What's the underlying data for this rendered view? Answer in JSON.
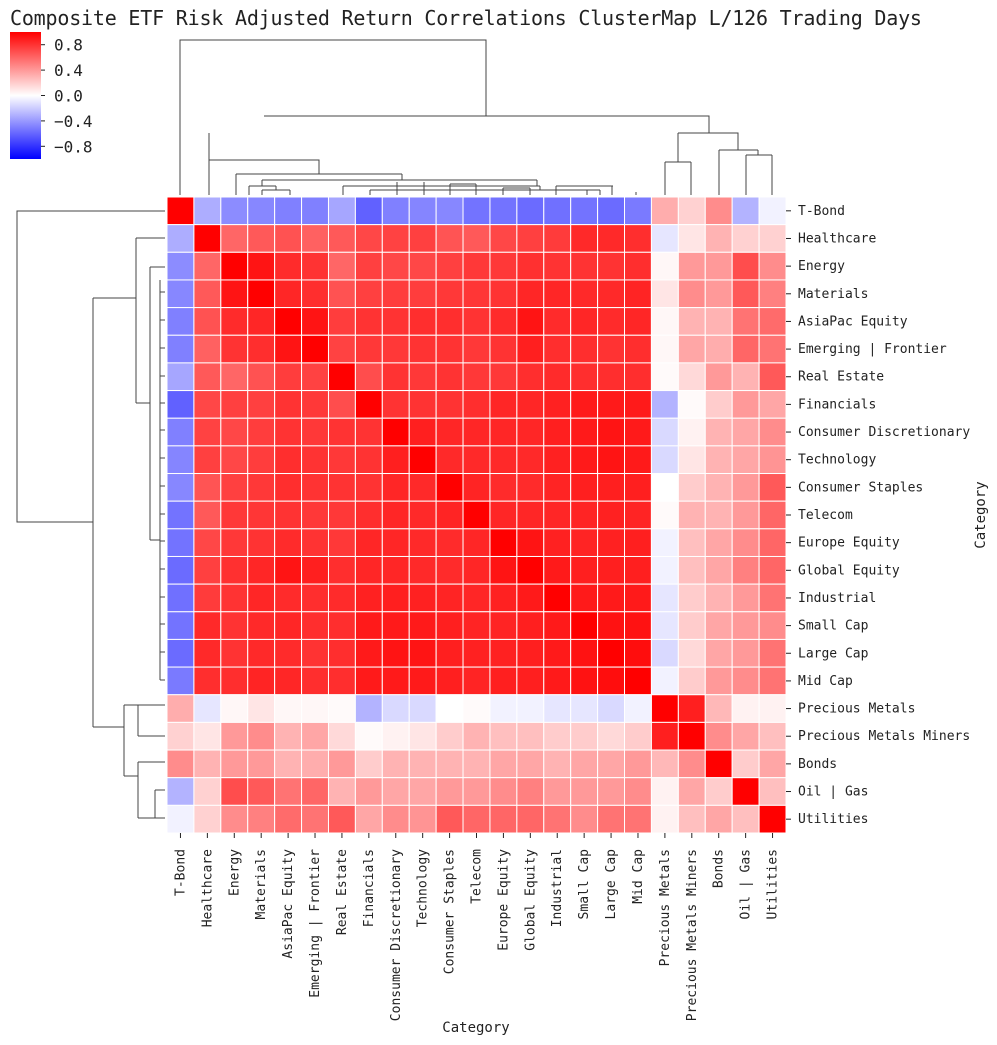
{
  "chart_data": {
    "type": "heatmap",
    "title": "Composite ETF Risk Adjusted Return Correlations ClusterMap L/126 Trading Days",
    "xlabel": "Category",
    "ylabel": "Category",
    "colorbar": {
      "cmap": "bwr",
      "vmin": -1.0,
      "vmax": 1.0,
      "ticks": [
        0.8,
        0.4,
        0.0,
        -0.4,
        -0.8
      ],
      "tick_labels": [
        "0.8",
        "0.4",
        "0.0",
        "−0.4",
        "−0.8"
      ]
    },
    "categories": [
      "T-Bond",
      "Healthcare",
      "Energy",
      "Materials",
      "AsiaPac Equity",
      "Emerging | Frontier",
      "Real Estate",
      "Financials",
      "Consumer Discretionary",
      "Technology",
      "Consumer Staples",
      "Telecom",
      "Europe Equity",
      "Global Equity",
      "Industrial",
      "Small Cap",
      "Large Cap",
      "Mid Cap",
      "Precious Metals",
      "Precious Metals Miners",
      "Bonds",
      "Oil | Gas",
      "Utilities"
    ],
    "matrix": [
      [
        1.0,
        -0.32,
        -0.45,
        -0.47,
        -0.5,
        -0.5,
        -0.35,
        -0.62,
        -0.5,
        -0.48,
        -0.47,
        -0.55,
        -0.55,
        -0.58,
        -0.56,
        -0.55,
        -0.58,
        -0.52,
        0.32,
        0.18,
        0.45,
        -0.3,
        -0.05
      ],
      [
        -0.32,
        1.0,
        0.6,
        0.65,
        0.68,
        0.62,
        0.65,
        0.72,
        0.74,
        0.75,
        0.67,
        0.65,
        0.72,
        0.75,
        0.77,
        0.84,
        0.84,
        0.82,
        -0.1,
        0.1,
        0.3,
        0.18,
        0.18
      ],
      [
        -0.45,
        0.6,
        1.0,
        0.92,
        0.83,
        0.8,
        0.6,
        0.75,
        0.72,
        0.72,
        0.75,
        0.78,
        0.78,
        0.81,
        0.8,
        0.8,
        0.8,
        0.82,
        0.03,
        0.4,
        0.4,
        0.7,
        0.45
      ],
      [
        -0.47,
        0.65,
        0.92,
        1.0,
        0.85,
        0.82,
        0.68,
        0.75,
        0.76,
        0.76,
        0.78,
        0.79,
        0.8,
        0.85,
        0.85,
        0.84,
        0.84,
        0.86,
        0.1,
        0.45,
        0.4,
        0.65,
        0.5
      ],
      [
        -0.5,
        0.68,
        0.83,
        0.85,
        1.0,
        0.92,
        0.76,
        0.8,
        0.8,
        0.82,
        0.82,
        0.8,
        0.83,
        0.92,
        0.83,
        0.85,
        0.83,
        0.85,
        0.03,
        0.3,
        0.3,
        0.55,
        0.58
      ],
      [
        -0.5,
        0.62,
        0.8,
        0.82,
        0.92,
        1.0,
        0.74,
        0.78,
        0.78,
        0.8,
        0.8,
        0.78,
        0.8,
        0.88,
        0.82,
        0.82,
        0.8,
        0.82,
        0.03,
        0.35,
        0.32,
        0.6,
        0.55
      ],
      [
        -0.35,
        0.65,
        0.6,
        0.68,
        0.76,
        0.74,
        1.0,
        0.7,
        0.8,
        0.78,
        0.8,
        0.78,
        0.78,
        0.82,
        0.83,
        0.82,
        0.82,
        0.82,
        0.02,
        0.15,
        0.4,
        0.3,
        0.65
      ],
      [
        -0.62,
        0.72,
        0.75,
        0.75,
        0.8,
        0.78,
        0.7,
        1.0,
        0.8,
        0.8,
        0.8,
        0.82,
        0.85,
        0.85,
        0.87,
        0.9,
        0.9,
        0.9,
        -0.3,
        0.02,
        0.2,
        0.4,
        0.35
      ],
      [
        -0.5,
        0.74,
        0.72,
        0.76,
        0.8,
        0.78,
        0.8,
        0.8,
        1.0,
        0.88,
        0.85,
        0.85,
        0.85,
        0.85,
        0.88,
        0.9,
        0.92,
        0.9,
        -0.15,
        0.05,
        0.3,
        0.35,
        0.45
      ],
      [
        -0.48,
        0.75,
        0.72,
        0.76,
        0.82,
        0.8,
        0.78,
        0.8,
        0.88,
        1.0,
        0.84,
        0.84,
        0.84,
        0.84,
        0.87,
        0.9,
        0.92,
        0.9,
        -0.15,
        0.1,
        0.3,
        0.35,
        0.42
      ],
      [
        -0.47,
        0.67,
        0.75,
        0.78,
        0.82,
        0.8,
        0.8,
        0.8,
        0.85,
        0.84,
        1.0,
        0.86,
        0.83,
        0.83,
        0.86,
        0.88,
        0.88,
        0.88,
        0.0,
        0.2,
        0.3,
        0.4,
        0.65
      ],
      [
        -0.55,
        0.65,
        0.78,
        0.79,
        0.8,
        0.78,
        0.78,
        0.82,
        0.85,
        0.84,
        0.86,
        1.0,
        0.85,
        0.85,
        0.85,
        0.86,
        0.87,
        0.86,
        0.02,
        0.3,
        0.3,
        0.4,
        0.6
      ],
      [
        -0.55,
        0.72,
        0.78,
        0.8,
        0.83,
        0.8,
        0.78,
        0.85,
        0.85,
        0.84,
        0.83,
        0.85,
        1.0,
        0.92,
        0.87,
        0.86,
        0.87,
        0.88,
        -0.05,
        0.25,
        0.35,
        0.45,
        0.6
      ],
      [
        -0.58,
        0.75,
        0.81,
        0.85,
        0.92,
        0.88,
        0.82,
        0.85,
        0.85,
        0.84,
        0.83,
        0.85,
        0.92,
        1.0,
        0.9,
        0.88,
        0.88,
        0.88,
        -0.05,
        0.25,
        0.35,
        0.5,
        0.6
      ],
      [
        -0.56,
        0.77,
        0.8,
        0.85,
        0.83,
        0.82,
        0.83,
        0.87,
        0.88,
        0.87,
        0.86,
        0.85,
        0.87,
        0.9,
        1.0,
        0.9,
        0.9,
        0.9,
        -0.1,
        0.2,
        0.3,
        0.4,
        0.55
      ],
      [
        -0.55,
        0.84,
        0.8,
        0.84,
        0.85,
        0.82,
        0.82,
        0.9,
        0.9,
        0.9,
        0.88,
        0.86,
        0.86,
        0.88,
        0.9,
        1.0,
        0.93,
        0.93,
        -0.1,
        0.2,
        0.35,
        0.4,
        0.45
      ],
      [
        -0.58,
        0.84,
        0.8,
        0.84,
        0.83,
        0.8,
        0.82,
        0.9,
        0.92,
        0.92,
        0.88,
        0.87,
        0.87,
        0.88,
        0.9,
        0.93,
        1.0,
        0.95,
        -0.15,
        0.15,
        0.35,
        0.4,
        0.55
      ],
      [
        -0.52,
        0.82,
        0.82,
        0.86,
        0.85,
        0.82,
        0.82,
        0.9,
        0.9,
        0.9,
        0.88,
        0.86,
        0.88,
        0.88,
        0.9,
        0.93,
        0.95,
        1.0,
        -0.05,
        0.2,
        0.4,
        0.45,
        0.55
      ],
      [
        0.32,
        -0.1,
        0.03,
        0.1,
        0.03,
        0.03,
        0.02,
        -0.3,
        -0.15,
        -0.15,
        0.0,
        0.02,
        -0.05,
        -0.05,
        -0.1,
        -0.1,
        -0.15,
        -0.05,
        1.0,
        0.88,
        0.28,
        0.05,
        0.05
      ],
      [
        0.18,
        0.1,
        0.4,
        0.45,
        0.3,
        0.35,
        0.15,
        0.02,
        0.05,
        0.1,
        0.2,
        0.3,
        0.25,
        0.25,
        0.2,
        0.2,
        0.15,
        0.2,
        0.88,
        1.0,
        0.45,
        0.35,
        0.25
      ],
      [
        0.45,
        0.3,
        0.4,
        0.4,
        0.3,
        0.32,
        0.4,
        0.2,
        0.3,
        0.3,
        0.3,
        0.3,
        0.35,
        0.35,
        0.3,
        0.35,
        0.35,
        0.4,
        0.28,
        0.45,
        1.0,
        0.2,
        0.35
      ],
      [
        -0.3,
        0.18,
        0.7,
        0.65,
        0.55,
        0.6,
        0.3,
        0.4,
        0.35,
        0.35,
        0.4,
        0.4,
        0.45,
        0.5,
        0.4,
        0.4,
        0.4,
        0.45,
        0.05,
        0.35,
        0.2,
        1.0,
        0.25
      ],
      [
        -0.05,
        0.18,
        0.45,
        0.5,
        0.58,
        0.55,
        0.65,
        0.35,
        0.45,
        0.42,
        0.65,
        0.6,
        0.6,
        0.6,
        0.55,
        0.45,
        0.55,
        0.55,
        0.05,
        0.25,
        0.35,
        0.25,
        1.0
      ]
    ]
  }
}
